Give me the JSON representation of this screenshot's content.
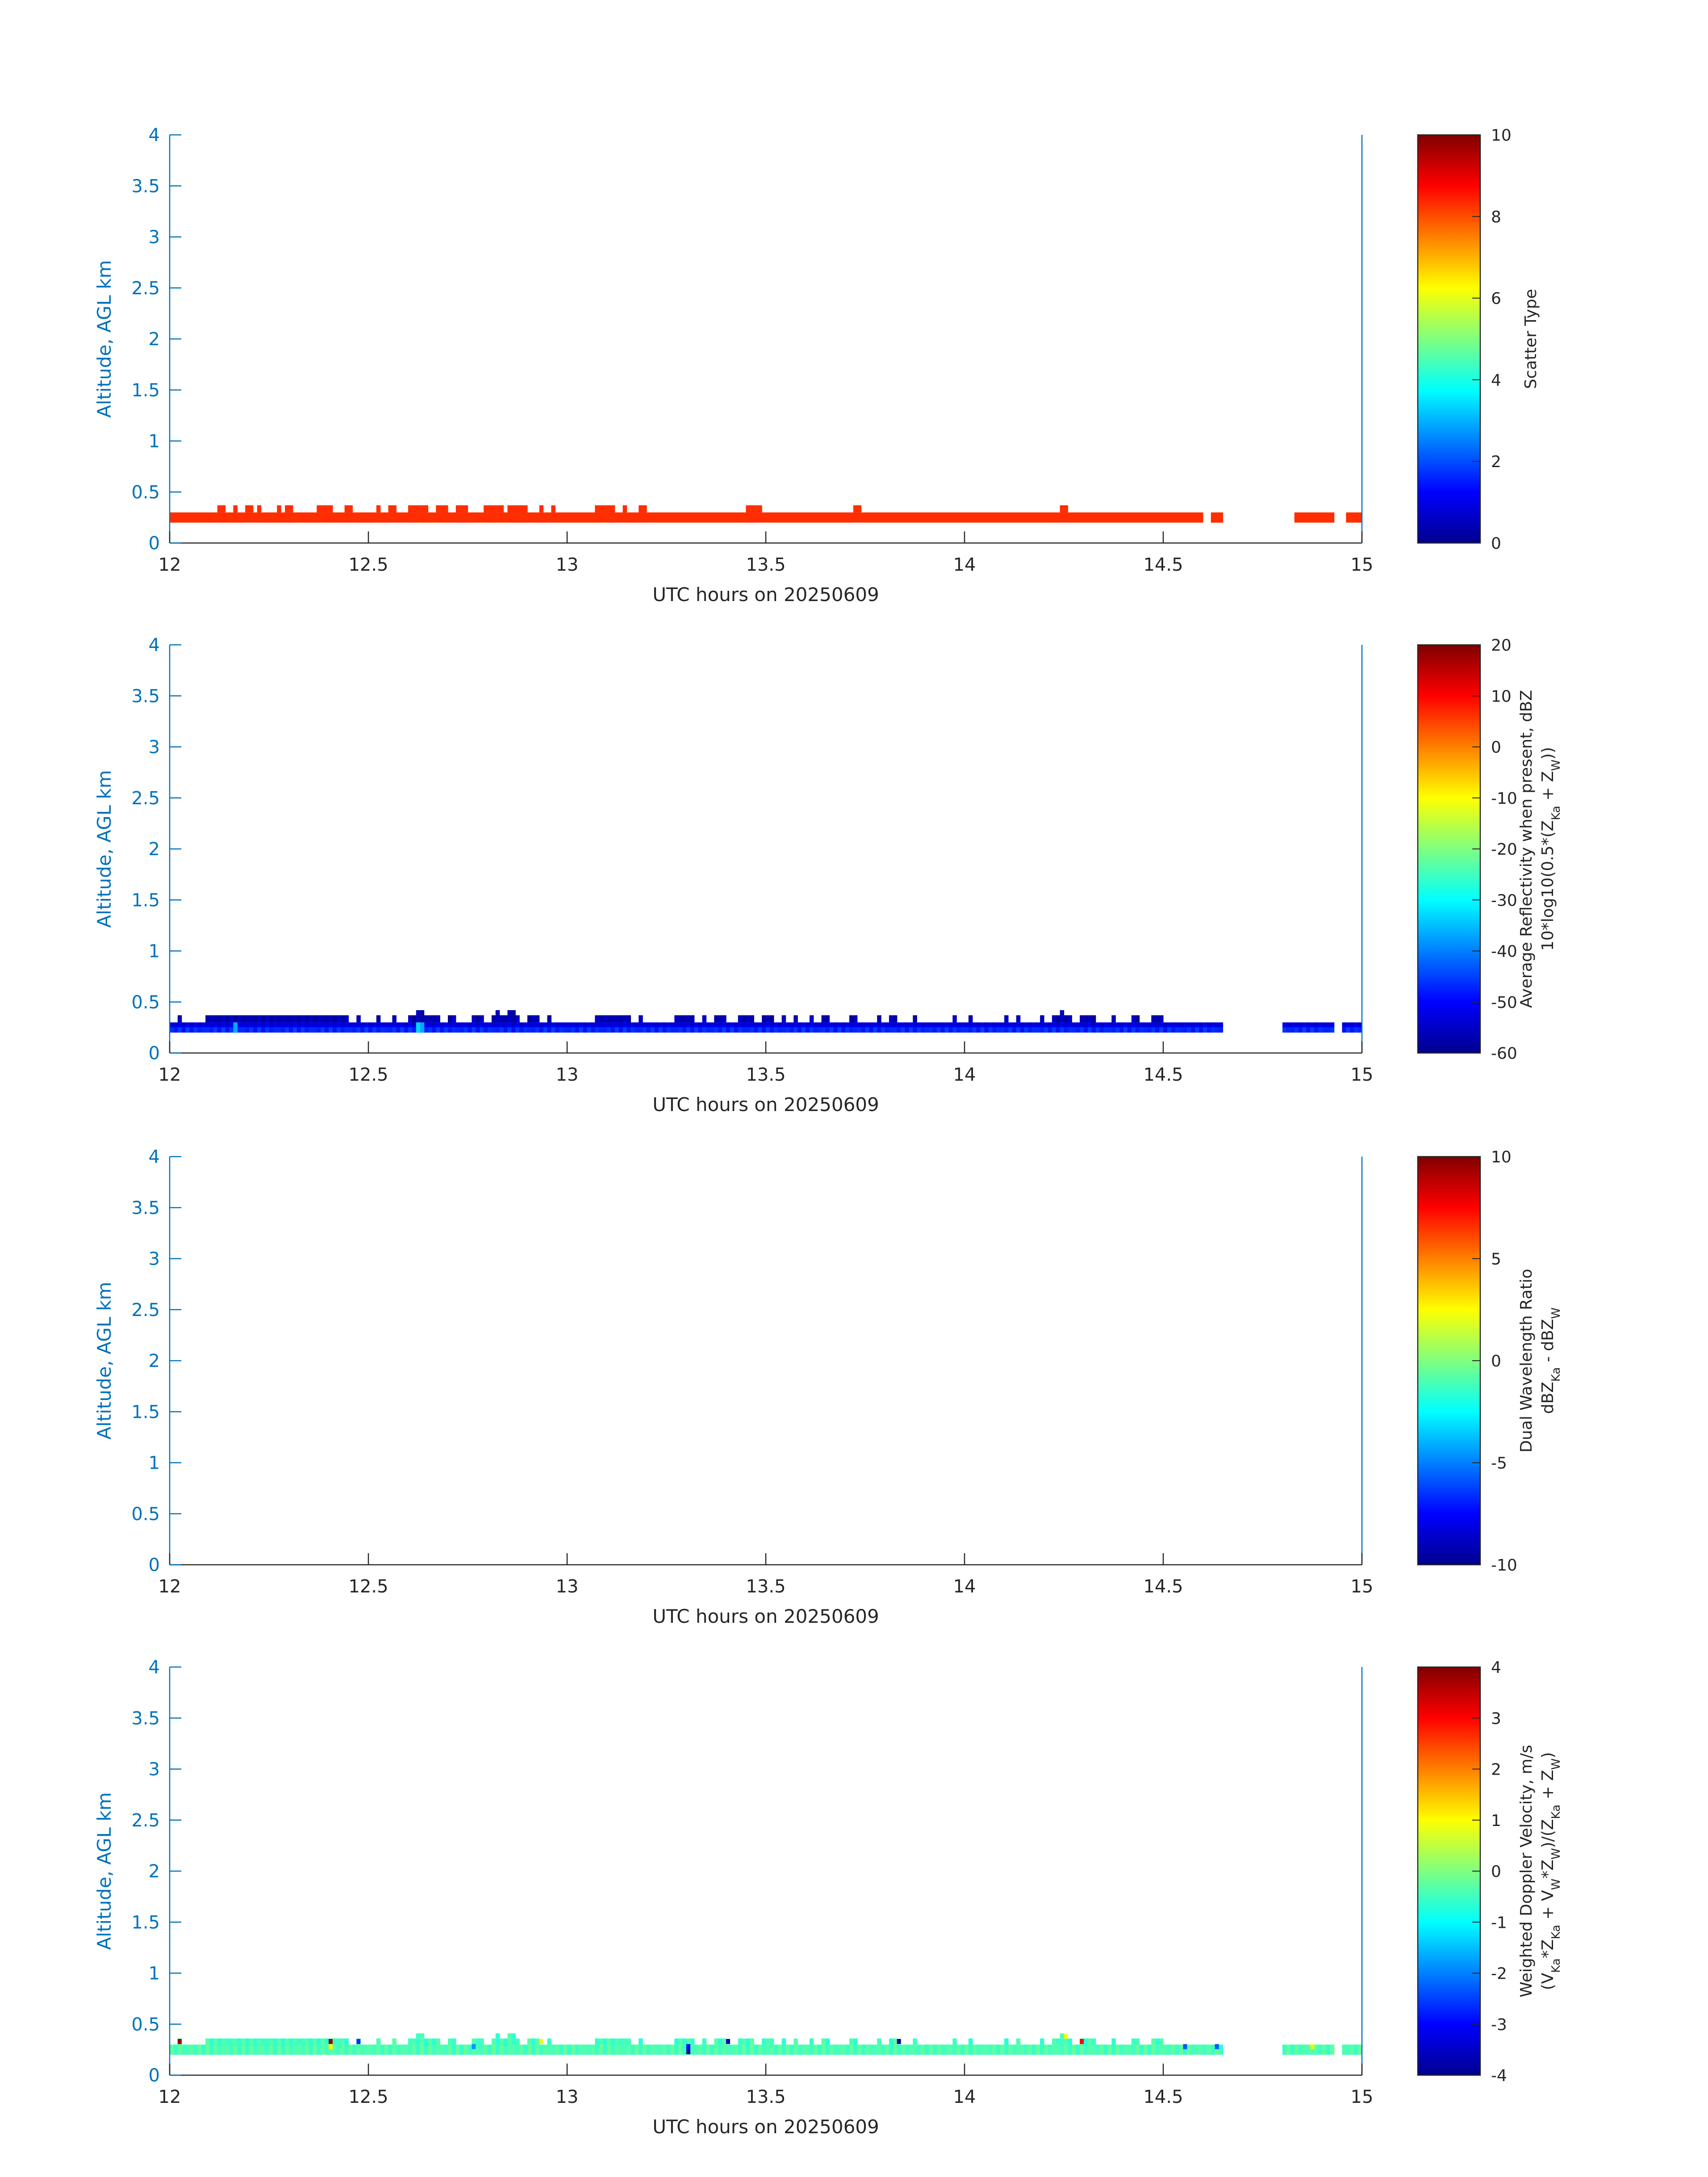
{
  "colors": {
    "axis_left": "#0072BD",
    "axis_text": "#262626",
    "background": "#ffffff"
  },
  "chart_data": [
    {
      "type": "heatmap",
      "xlabel": "UTC hours on 20250609",
      "ylabel": "Altitude, AGL km",
      "xlim": [
        12,
        15
      ],
      "ylim": [
        0,
        4
      ],
      "xticks": [
        "12",
        "12.5",
        "13",
        "13.5",
        "14",
        "14.5",
        "15"
      ],
      "yticks": [
        "0",
        "0.5",
        "1",
        "1.5",
        "2",
        "2.5",
        "3",
        "3.5",
        "4"
      ],
      "colorbar": {
        "label_lines": [
          "Scatter Type"
        ],
        "clim": [
          0,
          10
        ],
        "ticks": [
          "0",
          "2",
          "4",
          "6",
          "8",
          "10"
        ]
      },
      "layers": [
        {
          "ymin": 0.2,
          "ymax": 0.3,
          "base_value": 8.3,
          "gaps": [
            [
              14.6,
              14.62
            ],
            [
              14.65,
              14.83
            ],
            [
              14.93,
              14.96
            ]
          ]
        },
        {
          "ymin": 0.3,
          "ymax": 0.37,
          "base_value": 8.3,
          "spans": [
            [
              12.12,
              12.14
            ],
            [
              12.16,
              12.17
            ],
            [
              12.19,
              12.21
            ],
            [
              12.22,
              12.23
            ],
            [
              12.27,
              12.28
            ],
            [
              12.29,
              12.31
            ],
            [
              12.37,
              12.41
            ],
            [
              12.44,
              12.46
            ],
            [
              12.52,
              12.53
            ],
            [
              12.55,
              12.57
            ],
            [
              12.6,
              12.65
            ],
            [
              12.67,
              12.7
            ],
            [
              12.72,
              12.75
            ],
            [
              12.79,
              12.84
            ],
            [
              12.85,
              12.9
            ],
            [
              12.93,
              12.94
            ],
            [
              12.96,
              12.97
            ],
            [
              13.07,
              13.12
            ],
            [
              13.14,
              13.15
            ],
            [
              13.18,
              13.2
            ],
            [
              13.45,
              13.49
            ],
            [
              13.72,
              13.74
            ],
            [
              14.24,
              14.26
            ]
          ]
        },
        {
          "ymin": 0.2,
          "ymax": 0.23,
          "base_value": 8.3,
          "spans": [
            [
              14.62,
              14.65
            ]
          ]
        }
      ]
    },
    {
      "type": "heatmap",
      "xlabel": "UTC hours on 20250609",
      "ylabel": "Altitude, AGL km",
      "xlim": [
        12,
        15
      ],
      "ylim": [
        0,
        4
      ],
      "xticks": [
        "12",
        "12.5",
        "13",
        "13.5",
        "14",
        "14.5",
        "15"
      ],
      "yticks": [
        "0",
        "0.5",
        "1",
        "1.5",
        "2",
        "2.5",
        "3",
        "3.5",
        "4"
      ],
      "colorbar": {
        "label_lines": [
          "Average Reflectivity when present, dBZ",
          "10*log10(0.5*(Z_Ka + Z_W))"
        ],
        "clim": [
          -60,
          20
        ],
        "ticks": [
          "-60",
          "-50",
          "-40",
          "-30",
          "-20",
          "-10",
          "0",
          "10",
          "20"
        ]
      },
      "layers": [
        {
          "ymin": 0.2,
          "ymax": 0.25,
          "base_value": -47,
          "gaps": [
            [
              14.65,
              14.8
            ],
            [
              14.93,
              14.95
            ]
          ]
        },
        {
          "ymin": 0.25,
          "ymax": 0.3,
          "base_value": -53,
          "gaps": [
            [
              14.65,
              14.8
            ],
            [
              14.93,
              14.95
            ]
          ]
        },
        {
          "ymin": 0.3,
          "ymax": 0.37,
          "base_value": -57,
          "spans": [
            [
              12.02,
              12.03
            ],
            [
              12.09,
              12.45
            ],
            [
              12.47,
              12.48
            ],
            [
              12.52,
              12.53
            ],
            [
              12.56,
              12.57
            ],
            [
              12.6,
              12.68
            ],
            [
              12.7,
              12.72
            ],
            [
              12.76,
              12.79
            ],
            [
              12.81,
              12.88
            ],
            [
              12.9,
              12.93
            ],
            [
              12.95,
              12.96
            ],
            [
              13.07,
              13.16
            ],
            [
              13.18,
              13.19
            ],
            [
              13.27,
              13.32
            ],
            [
              13.34,
              13.35
            ],
            [
              13.37,
              13.4
            ],
            [
              13.43,
              13.47
            ],
            [
              13.49,
              13.52
            ],
            [
              13.54,
              13.55
            ],
            [
              13.57,
              13.58
            ],
            [
              13.61,
              13.62
            ],
            [
              13.64,
              13.66
            ],
            [
              13.71,
              13.73
            ],
            [
              13.78,
              13.79
            ],
            [
              13.81,
              13.83
            ],
            [
              13.87,
              13.88
            ],
            [
              13.97,
              13.98
            ],
            [
              14.01,
              14.02
            ],
            [
              14.1,
              14.11
            ],
            [
              14.13,
              14.14
            ],
            [
              14.19,
              14.2
            ],
            [
              14.22,
              14.27
            ],
            [
              14.29,
              14.33
            ],
            [
              14.37,
              14.38
            ],
            [
              14.42,
              14.44
            ],
            [
              14.47,
              14.5
            ]
          ]
        },
        {
          "ymin": 0.37,
          "ymax": 0.42,
          "base_value": -57,
          "spans": [
            [
              12.62,
              12.64
            ],
            [
              12.82,
              12.83
            ],
            [
              12.85,
              12.87
            ],
            [
              14.24,
              14.25
            ]
          ]
        },
        {
          "ymin": 0.2,
          "ymax": 0.3,
          "base_value": -35,
          "spans": [
            [
              12.16,
              12.17
            ],
            [
              12.62,
              12.64
            ]
          ]
        }
      ]
    },
    {
      "type": "heatmap",
      "xlabel": "UTC hours on 20250609",
      "ylabel": "Altitude, AGL km",
      "xlim": [
        12,
        15
      ],
      "ylim": [
        0,
        4
      ],
      "xticks": [
        "12",
        "12.5",
        "13",
        "13.5",
        "14",
        "14.5",
        "15"
      ],
      "yticks": [
        "0",
        "0.5",
        "1",
        "1.5",
        "2",
        "2.5",
        "3",
        "3.5",
        "4"
      ],
      "colorbar": {
        "label_lines": [
          "Dual Wavelength Ratio",
          "dBZ_Ka - dBZ_W"
        ],
        "clim": [
          -10,
          10
        ],
        "ticks": [
          "-10",
          "-5",
          "0",
          "5",
          "10"
        ]
      },
      "layers": []
    },
    {
      "type": "heatmap",
      "xlabel": "UTC hours on 20250609",
      "ylabel": "Altitude, AGL km",
      "xlim": [
        12,
        15
      ],
      "ylim": [
        0,
        4
      ],
      "xticks": [
        "12",
        "12.5",
        "13",
        "13.5",
        "14",
        "14.5",
        "15"
      ],
      "yticks": [
        "0",
        "0.5",
        "1",
        "1.5",
        "2",
        "2.5",
        "3",
        "3.5",
        "4"
      ],
      "colorbar": {
        "label_lines": [
          "Weighted Doppler Velocity, m/s",
          "(V_Ka*Z_Ka + V_W*Z_W)/(Z_Ka + Z_W)"
        ],
        "clim": [
          -4,
          4
        ],
        "ticks": [
          "-4",
          "-3",
          "-2",
          "-1",
          "0",
          "1",
          "2",
          "3",
          "4"
        ]
      },
      "layers": [
        {
          "ymin": 0.2,
          "ymax": 0.3,
          "base_value": -0.4,
          "gaps": [
            [
              14.65,
              14.8
            ],
            [
              14.93,
              14.95
            ]
          ]
        },
        {
          "ymin": 0.3,
          "ymax": 0.36,
          "base_value": -0.5,
          "spans": [
            [
              12.02,
              12.03
            ],
            [
              12.09,
              12.45
            ],
            [
              12.47,
              12.48
            ],
            [
              12.52,
              12.53
            ],
            [
              12.56,
              12.57
            ],
            [
              12.6,
              12.68
            ],
            [
              12.7,
              12.72
            ],
            [
              12.76,
              12.79
            ],
            [
              12.81,
              12.88
            ],
            [
              12.9,
              12.93
            ],
            [
              12.95,
              12.96
            ],
            [
              13.07,
              13.16
            ],
            [
              13.18,
              13.19
            ],
            [
              13.27,
              13.32
            ],
            [
              13.34,
              13.35
            ],
            [
              13.37,
              13.4
            ],
            [
              13.43,
              13.47
            ],
            [
              13.49,
              13.52
            ],
            [
              13.54,
              13.55
            ],
            [
              13.57,
              13.58
            ],
            [
              13.61,
              13.62
            ],
            [
              13.64,
              13.66
            ],
            [
              13.71,
              13.73
            ],
            [
              13.78,
              13.79
            ],
            [
              13.81,
              13.83
            ],
            [
              13.87,
              13.88
            ],
            [
              13.97,
              13.98
            ],
            [
              14.01,
              14.02
            ],
            [
              14.1,
              14.11
            ],
            [
              14.13,
              14.14
            ],
            [
              14.19,
              14.2
            ],
            [
              14.22,
              14.27
            ],
            [
              14.29,
              14.33
            ],
            [
              14.37,
              14.38
            ],
            [
              14.42,
              14.44
            ],
            [
              14.47,
              14.5
            ]
          ]
        },
        {
          "ymin": 0.36,
          "ymax": 0.41,
          "base_value": -0.5,
          "spans": [
            [
              12.62,
              12.64
            ],
            [
              12.82,
              12.83
            ],
            [
              12.85,
              12.87
            ],
            [
              14.24,
              14.25
            ]
          ]
        }
      ],
      "cells": [
        {
          "x": 12.025,
          "y": 0.33,
          "value": 3.8
        },
        {
          "x": 12.405,
          "y": 0.33,
          "value": 3.8
        },
        {
          "x": 12.405,
          "y": 0.28,
          "value": 1.0
        },
        {
          "x": 12.475,
          "y": 0.33,
          "value": -2.6
        },
        {
          "x": 12.765,
          "y": 0.28,
          "value": -1.8
        },
        {
          "x": 12.935,
          "y": 0.33,
          "value": 0.8
        },
        {
          "x": 13.305,
          "y": 0.23,
          "value": -3.9
        },
        {
          "x": 13.305,
          "y": 0.28,
          "value": -3.0
        },
        {
          "x": 13.405,
          "y": 0.33,
          "value": -3.6
        },
        {
          "x": 13.835,
          "y": 0.33,
          "value": -3.9
        },
        {
          "x": 14.255,
          "y": 0.38,
          "value": 0.9
        },
        {
          "x": 14.295,
          "y": 0.33,
          "value": 3.0
        },
        {
          "x": 14.555,
          "y": 0.28,
          "value": -2.3
        },
        {
          "x": 14.635,
          "y": 0.28,
          "value": -2.3
        },
        {
          "x": 14.875,
          "y": 0.28,
          "value": 0.9
        }
      ]
    }
  ]
}
